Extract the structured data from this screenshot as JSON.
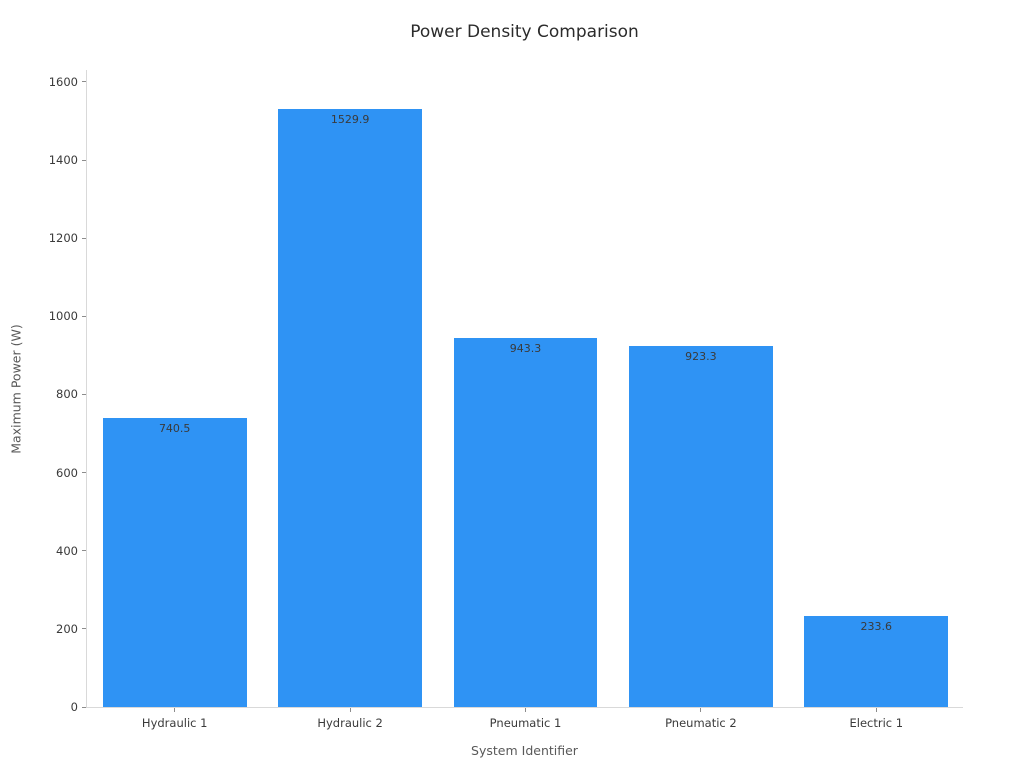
{
  "chart_data": {
    "type": "bar",
    "title": "Power Density Comparison",
    "xlabel": "System Identifier",
    "ylabel": "Maximum Power (W)",
    "categories": [
      "Hydraulic 1",
      "Hydraulic 2",
      "Pneumatic 1",
      "Pneumatic 2",
      "Electric 1"
    ],
    "values": [
      740.5,
      1529.9,
      943.3,
      923.3,
      233.6
    ],
    "value_labels": [
      "740.5",
      "1529.9",
      "943.3",
      "923.3",
      "233.6"
    ],
    "yticks": [
      0,
      200,
      400,
      600,
      800,
      1000,
      1200,
      1400,
      1600
    ],
    "ylim": [
      0,
      1633
    ],
    "grid": false,
    "legend": null,
    "bar_color": "#2f93f4",
    "bar_label_color": "#3a3a3a",
    "tick_label_color": "#3a3a3a",
    "axis_label_color": "#595959",
    "title_color": "#2b2b2b",
    "spine_color": "#d9d9d9",
    "background_color": "#ffffff"
  }
}
